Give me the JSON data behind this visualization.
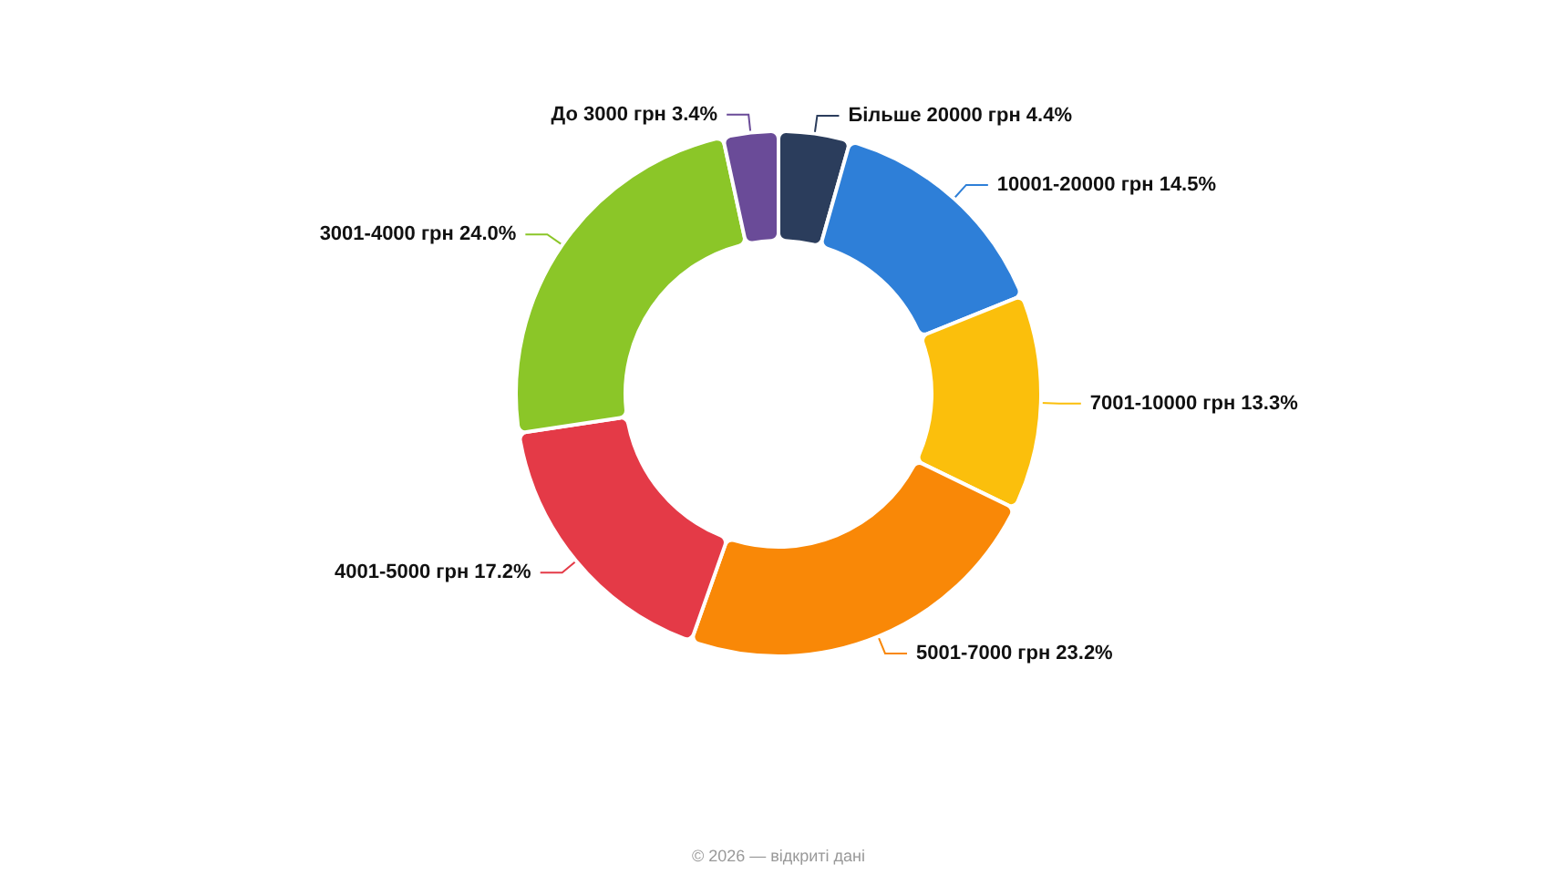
{
  "chart_data": {
    "type": "donut",
    "categories": [
      "Більше 20000 грн",
      "10001-20000 грн",
      "7001-10000 грн",
      "5001-7000 грн",
      "4001-5000 грн",
      "3001-4000 грн",
      "До 3000 грн"
    ],
    "values": [
      4.4,
      14.5,
      13.3,
      23.2,
      17.2,
      24.0,
      3.4
    ],
    "colors": [
      "#2b3d5c",
      "#2e7fd8",
      "#fbbf0c",
      "#f98807",
      "#e43a47",
      "#8bc628",
      "#6a4b98"
    ],
    "value_labels": [
      "4.4%",
      "14.5%",
      "13.3%",
      "23.2%",
      "17.2%",
      "24.0%",
      "3.4%"
    ],
    "legend": false,
    "annotations": [
      "© 2026 — відкриті дані"
    ]
  }
}
